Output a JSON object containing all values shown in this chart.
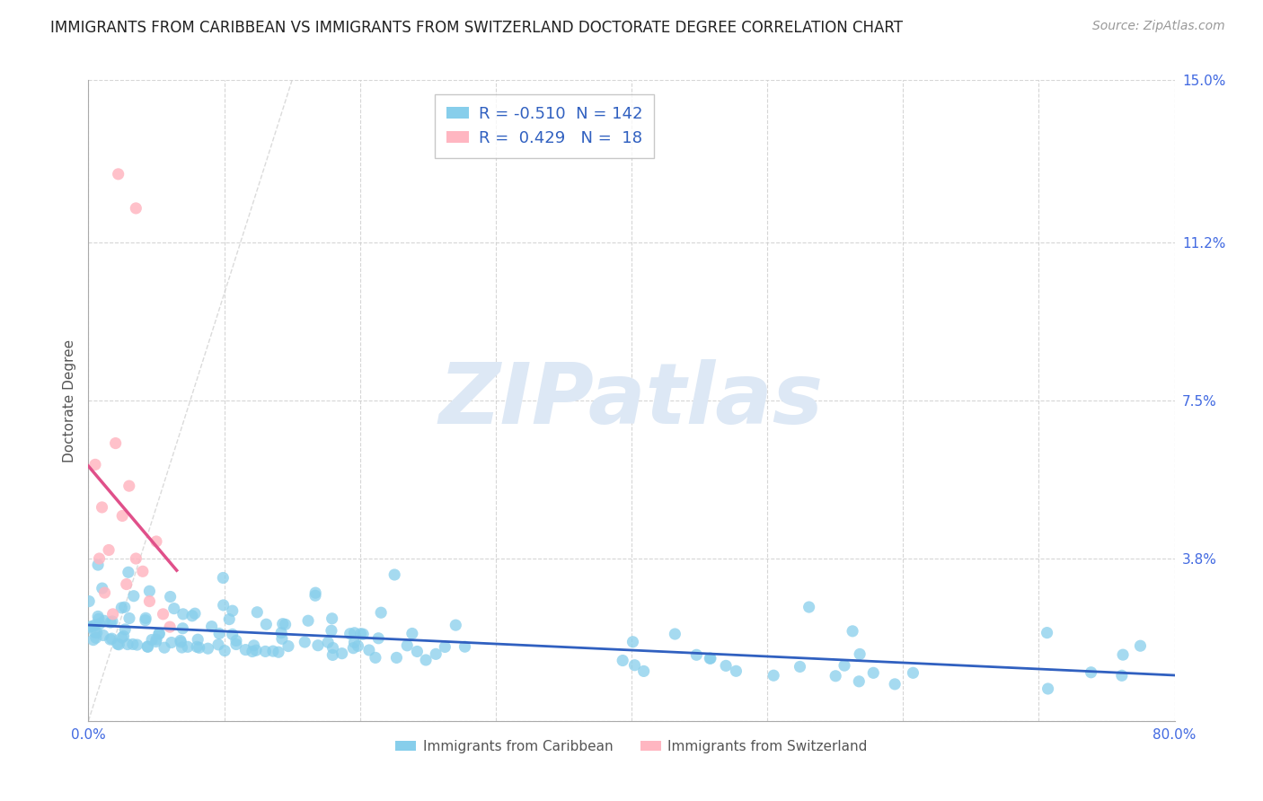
{
  "title": "IMMIGRANTS FROM CARIBBEAN VS IMMIGRANTS FROM SWITZERLAND DOCTORATE DEGREE CORRELATION CHART",
  "source": "Source: ZipAtlas.com",
  "ylabel": "Doctorate Degree",
  "watermark": "ZIPatlas",
  "xlim": [
    0.0,
    0.8
  ],
  "ylim": [
    0.0,
    0.15
  ],
  "yticks": [
    0.0,
    0.038,
    0.075,
    0.112,
    0.15
  ],
  "ytick_labels": [
    "",
    "3.8%",
    "7.5%",
    "11.2%",
    "15.0%"
  ],
  "xticks": [
    0.0,
    0.1,
    0.2,
    0.3,
    0.4,
    0.5,
    0.6,
    0.7,
    0.8
  ],
  "xtick_labels": [
    "0.0%",
    "",
    "",
    "",
    "",
    "",
    "",
    "",
    "80.0%"
  ],
  "legend_R_caribbean": "-0.510",
  "legend_N_caribbean": "142",
  "legend_R_switzerland": "0.429",
  "legend_N_switzerland": "18",
  "color_caribbean": "#87CEEB",
  "color_switzerland": "#FFB6C1",
  "color_trend_caribbean": "#3060C0",
  "color_trend_switzerland": "#E0508A",
  "title_fontsize": 12,
  "source_fontsize": 10,
  "axis_label_fontsize": 11,
  "tick_fontsize": 11,
  "legend_fontsize": 13,
  "background_color": "#FFFFFF",
  "grid_color": "#CCCCCC",
  "watermark_color": "#DDE8F5",
  "ref_line_color": "#CCCCCC"
}
